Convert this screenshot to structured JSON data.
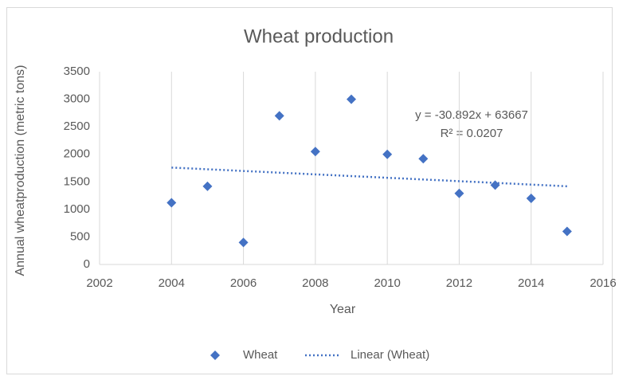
{
  "chart_data": {
    "type": "scatter",
    "title": "Wheat production",
    "x_label": "Year",
    "y_label": "Annual wheatproduction (metric tons)",
    "series": [
      {
        "name": "Wheat",
        "color": "#4472c4",
        "x": [
          2004,
          2005,
          2006,
          2007,
          2008,
          2009,
          2010,
          2011,
          2012,
          2013,
          2014,
          2015
        ],
        "values": [
          1120,
          1420,
          400,
          2700,
          2050,
          3000,
          2000,
          1920,
          1290,
          1440,
          1200,
          600
        ]
      }
    ],
    "trendline": {
      "name": "Linear (Wheat)",
      "color": "#4472c4",
      "slope": -30.892,
      "intercept": 63667,
      "equation": "y = -30.892x + 63667",
      "r_squared": "R² = 0.0207"
    },
    "xlim": [
      2002,
      2016
    ],
    "xticks": [
      2002,
      2004,
      2006,
      2008,
      2010,
      2012,
      2014,
      2016
    ],
    "ylim": [
      0,
      3500
    ],
    "yticks": [
      0,
      500,
      1000,
      1500,
      2000,
      2500,
      3000,
      3500
    ],
    "grid": "vertical",
    "legend": "bottom"
  }
}
